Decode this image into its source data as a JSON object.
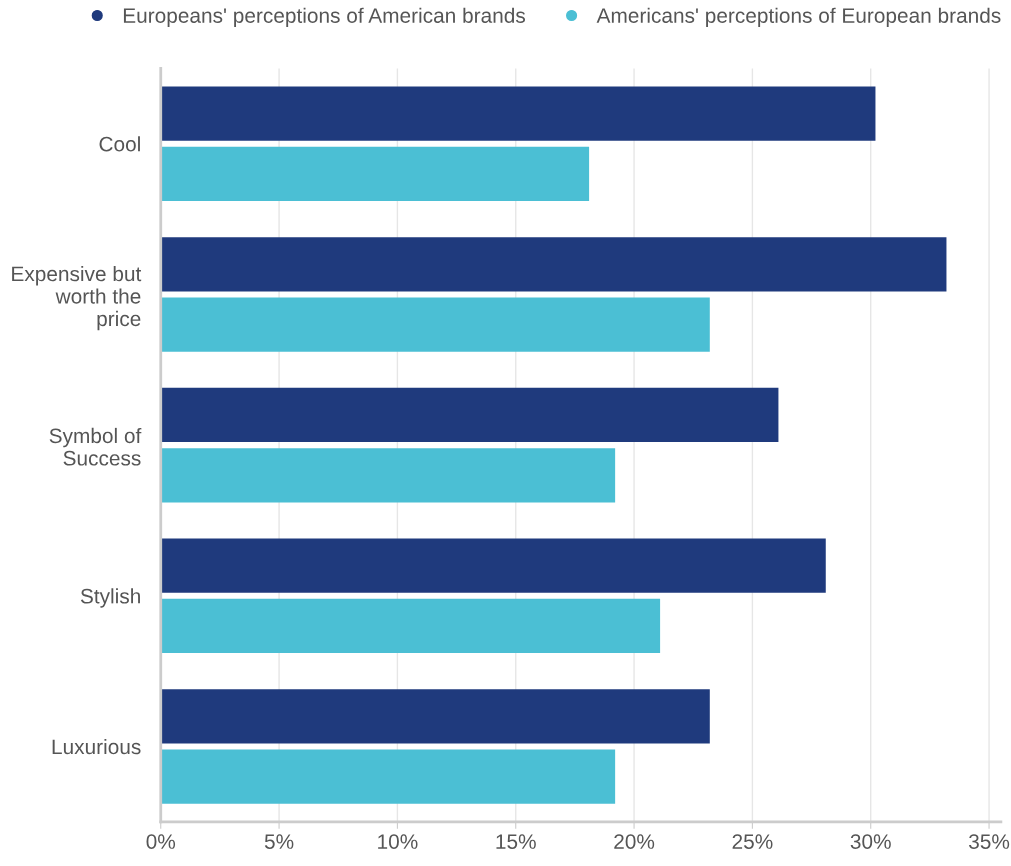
{
  "chart_data": {
    "type": "bar",
    "orientation": "horizontal",
    "categories": [
      "Cool",
      "Expensive but\nworth the\nprice",
      "Symbol of\nSuccess",
      "Stylish",
      "Luxurious"
    ],
    "series": [
      {
        "name": "Europeans' perceptions of American brands",
        "color": "#1f3a7d",
        "values": [
          30.2,
          33.2,
          26.1,
          28.1,
          23.2
        ]
      },
      {
        "name": "Americans' perceptions of European brands",
        "color": "#4bbfd4",
        "values": [
          18.1,
          23.2,
          19.2,
          21.1,
          19.2
        ]
      }
    ],
    "xlim": [
      0,
      35.5
    ],
    "xticks": [
      {
        "value": 0,
        "label": "0%"
      },
      {
        "value": 5,
        "label": "5%"
      },
      {
        "value": 10,
        "label": "10%"
      },
      {
        "value": 15,
        "label": "15%"
      },
      {
        "value": 20,
        "label": "20%"
      },
      {
        "value": 25,
        "label": "25%"
      },
      {
        "value": 30,
        "label": "30%"
      },
      {
        "value": 35,
        "label": "35%"
      }
    ],
    "grid": "x",
    "legend": "top",
    "marker": "circle"
  }
}
